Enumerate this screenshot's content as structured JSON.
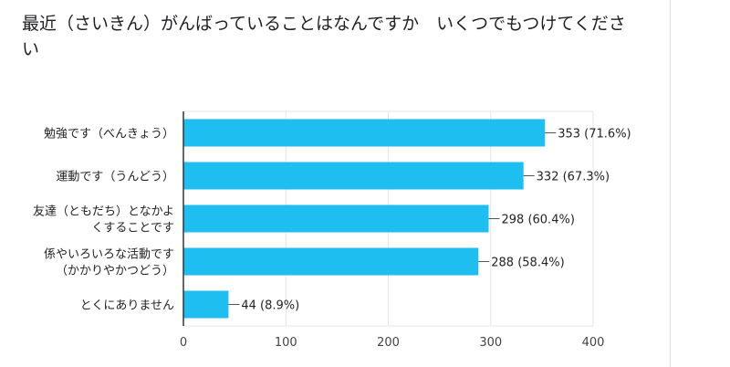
{
  "question_title": "最近（さいきん）がんばっていることはなんですか　いくつでもつけてください",
  "colors": {
    "bar": "#1ebef0",
    "grid": "#e6e6e6",
    "axis": "#333333"
  },
  "chart_data": {
    "type": "bar",
    "orientation": "horizontal",
    "categories": [
      [
        "勉強です（べんきょう）"
      ],
      [
        "運動です（うんどう）"
      ],
      [
        "友達（ともだち）となかよ",
        "くすることです"
      ],
      [
        "係やいろいろな活動です",
        "（かかりやかつどう）"
      ],
      [
        "とくにありません"
      ]
    ],
    "values": [
      353,
      332,
      298,
      288,
      44
    ],
    "value_labels": [
      "353 (71.6%)",
      "332 (67.3%)",
      "298 (60.4%)",
      "288 (58.4%)",
      "44 (8.9%)"
    ],
    "xlim": [
      0,
      400
    ],
    "xticks": [
      0,
      100,
      200,
      300,
      400
    ],
    "grid": true
  }
}
